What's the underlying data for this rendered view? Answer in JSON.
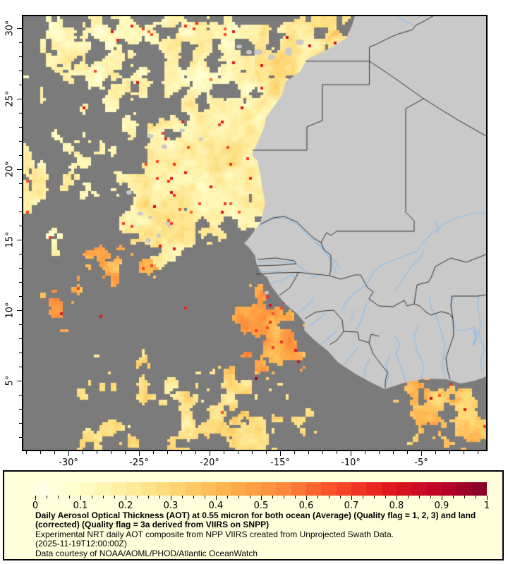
{
  "chart_data": {
    "type": "heatmap",
    "product": {
      "title_bold": "Daily Aerosol Optical Thickness (AOT) at 0.55 micron for both ocean (Average) (Quality flag = 1, 2, 3) and land (corrected) (Quality flag = 3a derived from VIIRS on SNPP)",
      "description": "Experimental NRT daily AOT composite from NPP VIIRS created from Unprojected Swath Data.",
      "timestamp": "(2025-11-19T12:00:00Z)",
      "credit": "Data courtesy of NOAA/AOML/PHOD/Atlantic OceanWatch"
    },
    "x_axis": {
      "tick_labels": [
        "-30°",
        "-25°",
        "-20°",
        "-15°",
        "-10°",
        "-5°"
      ],
      "tick_values": [
        -30,
        -25,
        -20,
        -15,
        -10,
        -5
      ],
      "minor_step_deg": 1,
      "lon_range": [
        -33.2,
        -0.4
      ]
    },
    "y_axis": {
      "tick_labels": [
        "30°",
        "25°",
        "20°",
        "15°",
        "10°",
        "5°"
      ],
      "tick_values": [
        30,
        25,
        20,
        15,
        10,
        5
      ],
      "minor_step_deg": 1,
      "lat_range": [
        0.1,
        30.85
      ]
    },
    "colorbar": {
      "min": 0,
      "max": 1,
      "label_values": [
        "0",
        "0.1",
        "0.2",
        "0.3",
        "0.4",
        "0.5",
        "0.6",
        "0.7",
        "0.8",
        "0.9",
        "1"
      ],
      "minor_tick_step": 0.025,
      "segments": 30,
      "palette_stops": [
        {
          "pos": 0.0,
          "color": "#ffffee"
        },
        {
          "pos": 0.08,
          "color": "#ffffcc"
        },
        {
          "pos": 0.2,
          "color": "#ffeda0"
        },
        {
          "pos": 0.3,
          "color": "#fed976"
        },
        {
          "pos": 0.42,
          "color": "#feb24c"
        },
        {
          "pos": 0.54,
          "color": "#fd8d3c"
        },
        {
          "pos": 0.66,
          "color": "#fc4e2a"
        },
        {
          "pos": 0.78,
          "color": "#e31a1c"
        },
        {
          "pos": 0.9,
          "color": "#bd0026"
        },
        {
          "pos": 1.0,
          "color": "#800026"
        }
      ]
    },
    "colors": {
      "ocean_no_data": "#7b7b7b",
      "land": "#c9c9c9",
      "country_border": "#333333",
      "river": "#92bee8",
      "map_frame": "#000000",
      "page_background": "#ffffff",
      "legend_background": "#ffffdc",
      "legend_border": "#000000",
      "tick_color": "#000000",
      "text_color": "#000000"
    },
    "aot_regions": [
      {
        "area": "NE Atlantic north of 17N between 33W and 14W",
        "coverage": "patchy pale haze",
        "aot_estimate": [
          0.1,
          0.3
        ]
      },
      {
        "area": "dense dust plume off Western Sahara / Mauritania / Senegal coast 13N-24N",
        "coverage": "nearly solid",
        "aot_estimate": [
          0.15,
          0.3
        ]
      },
      {
        "area": "orange band 8N-15N, 33W-24W",
        "coverage": "patchy",
        "aot_estimate": [
          0.3,
          0.6
        ]
      },
      {
        "area": "plume southwest of Guinea coast 5N-12N, 20W-13W",
        "coverage": "patchy",
        "aot_estimate": [
          0.35,
          0.7
        ]
      },
      {
        "area": "scattered haze 0N-5N mid-Atlantic",
        "coverage": "scattered",
        "aot_estimate": [
          0.15,
          0.4
        ]
      },
      {
        "area": "Gulf of Guinea coastal patch 0N-6N, 7W-0W",
        "coverage": "patchy",
        "aot_estimate": [
          0.25,
          0.5
        ]
      },
      {
        "area": "isolated dark-red pixels near coasts",
        "coverage": "single pixels",
        "aot_estimate": [
          0.7,
          1.0
        ]
      },
      {
        "area": "land surface and remaining ocean",
        "coverage": "gray = no retrieval / no data",
        "aot_estimate": null
      }
    ]
  }
}
